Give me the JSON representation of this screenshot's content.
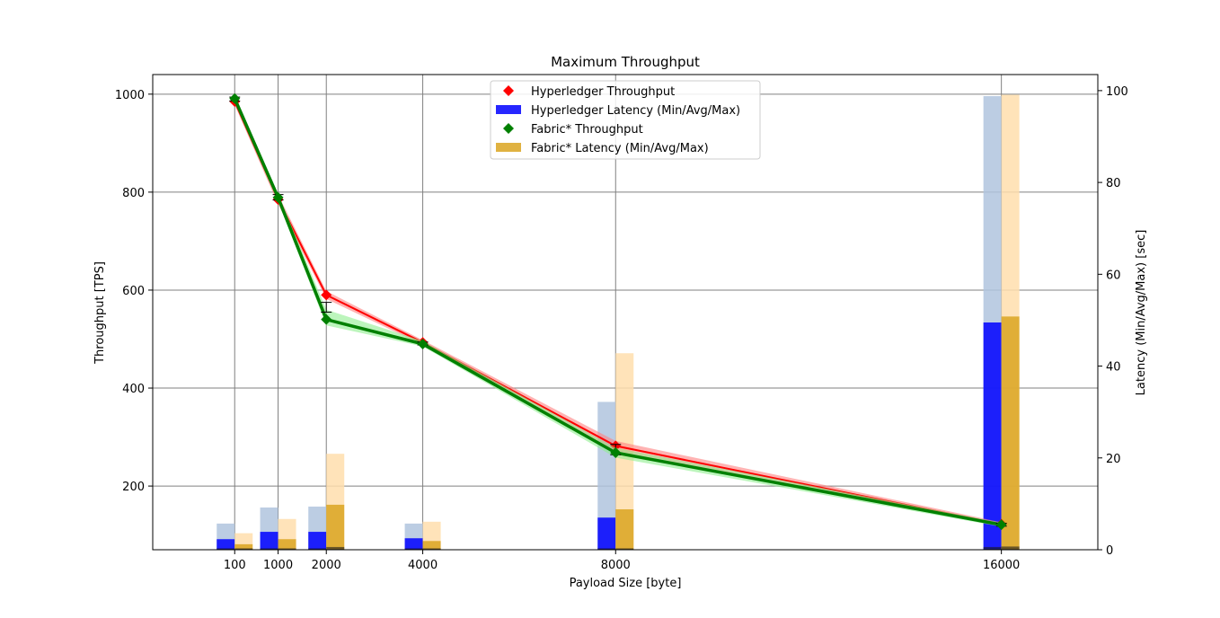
{
  "chart_data": {
    "type": "line+bar",
    "title": "Maximum Throughput",
    "xlabel": "Payload Size [byte]",
    "ylabel": "Throughput [TPS]",
    "y2label": "Latency (Min/Avg/Max) [sec]",
    "x": [
      100,
      1000,
      2000,
      4000,
      8000,
      16000
    ],
    "x_tick_labels": [
      "100",
      "1000",
      "2000",
      "4000",
      "8000",
      "16000"
    ],
    "xlim": [
      -1600,
      18000
    ],
    "ylim": [
      70,
      1040
    ],
    "y_ticks": [
      200,
      400,
      600,
      800,
      1000
    ],
    "y2lim": [
      0,
      103.5
    ],
    "y2_ticks": [
      0,
      20,
      40,
      60,
      80,
      100
    ],
    "grid": true,
    "legend_placement": "top-center",
    "series": [
      {
        "name": "Hyperledger Throughput",
        "kind": "line",
        "axis": "left",
        "color": "#ff0000",
        "band_color": "#ff8080",
        "marker": "diamond",
        "values": [
          985,
          785,
          590,
          493,
          282,
          122
        ],
        "lower": [
          978,
          775,
          582,
          488,
          272,
          118
        ],
        "upper": [
          992,
          795,
          598,
          498,
          292,
          126
        ]
      },
      {
        "name": "Hyperledger Latency (Min/Avg/Max)",
        "kind": "bar",
        "axis": "right",
        "color": "#0000ff",
        "max_color": "#b0c4de",
        "min": [
          0.3,
          0.3,
          0.3,
          0.3,
          0.3,
          0.6
        ],
        "avg": [
          2.3,
          3.9,
          3.9,
          2.5,
          7.0,
          49.5
        ],
        "max": [
          5.7,
          9.2,
          9.4,
          5.7,
          32.2,
          98.8
        ]
      },
      {
        "name": "Fabric* Throughput",
        "kind": "line",
        "axis": "left",
        "color": "#008000",
        "band_color": "#90ee90",
        "marker": "diamond",
        "values": [
          991,
          789,
          540,
          490,
          268,
          121
        ],
        "lower": [
          985,
          780,
          528,
          485,
          258,
          117
        ],
        "upper": [
          995,
          797,
          560,
          496,
          278,
          125
        ],
        "err_low": [
          986,
          784,
          555,
          488,
          264,
          118
        ],
        "err_high": [
          994,
          795,
          575,
          494,
          285,
          124
        ]
      },
      {
        "name": "Fabric* Latency (Min/Avg/Max)",
        "kind": "bar",
        "axis": "right",
        "color": "#daa520",
        "max_color": "#ffdead",
        "min": [
          0.3,
          0.3,
          0.6,
          0.3,
          0.3,
          0.7
        ],
        "avg": [
          1.2,
          2.3,
          9.8,
          1.9,
          8.8,
          50.8
        ],
        "max": [
          3.6,
          6.7,
          20.9,
          6.1,
          42.8,
          99.1
        ]
      }
    ]
  }
}
